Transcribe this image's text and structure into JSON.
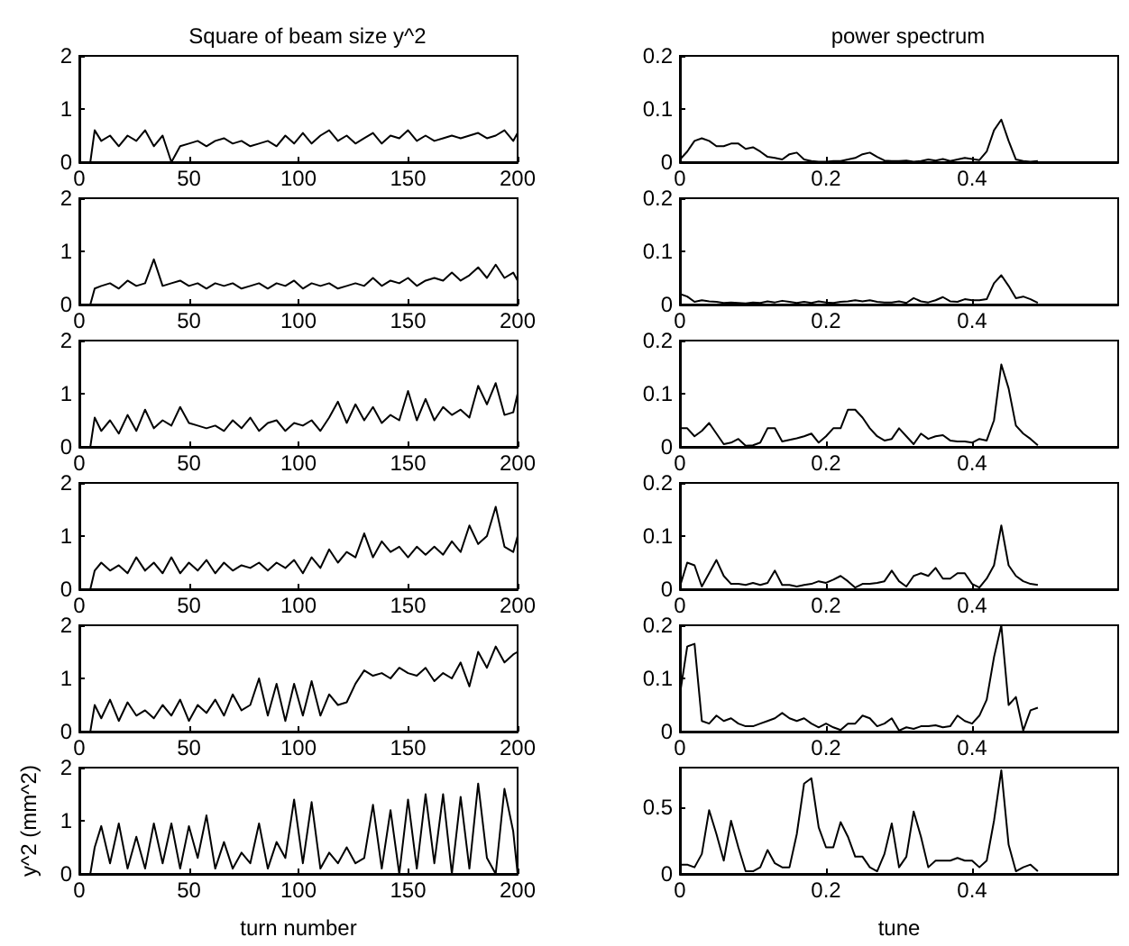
{
  "chart_data": [
    {
      "type": "line",
      "title": "Square of beam size y^2",
      "color": "#000000",
      "xlim": [
        0,
        200
      ],
      "xticks": [
        0,
        50,
        100,
        150,
        200
      ],
      "ylim": [
        0,
        2
      ],
      "yticks": [
        0,
        1,
        2
      ],
      "x": [
        5,
        7,
        10,
        14,
        18,
        22,
        26,
        30,
        34,
        38,
        42,
        46,
        50,
        54,
        58,
        62,
        66,
        70,
        74,
        78,
        82,
        86,
        90,
        94,
        98,
        102,
        106,
        110,
        114,
        118,
        122,
        126,
        130,
        134,
        138,
        142,
        146,
        150,
        154,
        158,
        162,
        166,
        170,
        174,
        178,
        182,
        186,
        190,
        194,
        198,
        200
      ],
      "values": [
        0,
        0.6,
        0.4,
        0.5,
        0.3,
        0.5,
        0.4,
        0.6,
        0.3,
        0.5,
        0,
        0.3,
        0.35,
        0.4,
        0.3,
        0.4,
        0.45,
        0.35,
        0.4,
        0.3,
        0.35,
        0.4,
        0.3,
        0.5,
        0.35,
        0.55,
        0.35,
        0.5,
        0.6,
        0.4,
        0.5,
        0.35,
        0.45,
        0.55,
        0.35,
        0.5,
        0.45,
        0.6,
        0.4,
        0.5,
        0.4,
        0.45,
        0.5,
        0.45,
        0.5,
        0.55,
        0.45,
        0.5,
        0.6,
        0.4,
        0.55
      ]
    },
    {
      "type": "line",
      "title": "power spectrum",
      "color": "#000000",
      "xlim": [
        0,
        0.6
      ],
      "xticks": [
        0,
        0.2,
        0.4
      ],
      "ylim": [
        0,
        0.2
      ],
      "yticks": [
        0,
        0.1,
        0.2
      ],
      "x": [
        0,
        0.01,
        0.02,
        0.03,
        0.04,
        0.05,
        0.06,
        0.07,
        0.08,
        0.09,
        0.1,
        0.11,
        0.12,
        0.13,
        0.14,
        0.15,
        0.16,
        0.17,
        0.18,
        0.19,
        0.2,
        0.21,
        0.22,
        0.23,
        0.24,
        0.25,
        0.26,
        0.27,
        0.28,
        0.29,
        0.3,
        0.31,
        0.32,
        0.33,
        0.34,
        0.35,
        0.36,
        0.37,
        0.38,
        0.39,
        0.4,
        0.41,
        0.42,
        0.43,
        0.44,
        0.45,
        0.46,
        0.47,
        0.48,
        0.49
      ],
      "values": [
        0.005,
        0.02,
        0.04,
        0.045,
        0.04,
        0.03,
        0.03,
        0.035,
        0.035,
        0.025,
        0.028,
        0.02,
        0.01,
        0.008,
        0.005,
        0.015,
        0.018,
        0.005,
        0.002,
        0.001,
        0.001,
        0.002,
        0.002,
        0.005,
        0.008,
        0.015,
        0.018,
        0.01,
        0.003,
        0.002,
        0.002,
        0.003,
        0.001,
        0.002,
        0.005,
        0.003,
        0.006,
        0.002,
        0.005,
        0.008,
        0.006,
        0.004,
        0.02,
        0.06,
        0.08,
        0.04,
        0.005,
        0.002,
        0.001,
        0.002
      ]
    },
    {
      "type": "line",
      "color": "#000000",
      "xlim": [
        0,
        200
      ],
      "xticks": [
        0,
        50,
        100,
        150,
        200
      ],
      "ylim": [
        0,
        2
      ],
      "yticks": [
        0,
        1,
        2
      ],
      "x": [
        5,
        7,
        10,
        14,
        18,
        22,
        26,
        30,
        34,
        38,
        42,
        46,
        50,
        54,
        58,
        62,
        66,
        70,
        74,
        78,
        82,
        86,
        90,
        94,
        98,
        102,
        106,
        110,
        114,
        118,
        122,
        126,
        130,
        134,
        138,
        142,
        146,
        150,
        154,
        158,
        162,
        166,
        170,
        174,
        178,
        182,
        186,
        190,
        194,
        198,
        200
      ],
      "values": [
        0,
        0.3,
        0.35,
        0.4,
        0.3,
        0.45,
        0.35,
        0.4,
        0.85,
        0.35,
        0.4,
        0.45,
        0.35,
        0.4,
        0.3,
        0.4,
        0.35,
        0.4,
        0.3,
        0.35,
        0.4,
        0.3,
        0.4,
        0.35,
        0.45,
        0.3,
        0.4,
        0.35,
        0.4,
        0.3,
        0.35,
        0.4,
        0.35,
        0.5,
        0.35,
        0.45,
        0.4,
        0.5,
        0.35,
        0.45,
        0.5,
        0.45,
        0.6,
        0.45,
        0.55,
        0.7,
        0.5,
        0.75,
        0.5,
        0.6,
        0.45
      ]
    },
    {
      "type": "line",
      "color": "#000000",
      "xlim": [
        0,
        0.6
      ],
      "xticks": [
        0,
        0.2,
        0.4
      ],
      "ylim": [
        0,
        0.2
      ],
      "yticks": [
        0,
        0.1,
        0.2
      ],
      "x": [
        0,
        0.01,
        0.02,
        0.03,
        0.04,
        0.05,
        0.06,
        0.07,
        0.08,
        0.09,
        0.1,
        0.11,
        0.12,
        0.13,
        0.14,
        0.15,
        0.16,
        0.17,
        0.18,
        0.19,
        0.2,
        0.21,
        0.22,
        0.23,
        0.24,
        0.25,
        0.26,
        0.27,
        0.28,
        0.29,
        0.3,
        0.31,
        0.32,
        0.33,
        0.34,
        0.35,
        0.36,
        0.37,
        0.38,
        0.39,
        0.4,
        0.41,
        0.42,
        0.43,
        0.44,
        0.45,
        0.46,
        0.47,
        0.48,
        0.49
      ],
      "values": [
        0.02,
        0.015,
        0.005,
        0.008,
        0.006,
        0.005,
        0.003,
        0.004,
        0.003,
        0.002,
        0.004,
        0.003,
        0.006,
        0.004,
        0.007,
        0.005,
        0.003,
        0.005,
        0.003,
        0.006,
        0.004,
        0.003,
        0.005,
        0.006,
        0.008,
        0.006,
        0.008,
        0.005,
        0.004,
        0.004,
        0.006,
        0.003,
        0.012,
        0.006,
        0.004,
        0.008,
        0.014,
        0.006,
        0.005,
        0.01,
        0.008,
        0.008,
        0.01,
        0.04,
        0.055,
        0.035,
        0.012,
        0.015,
        0.01,
        0.003
      ]
    },
    {
      "type": "line",
      "color": "#000000",
      "xlim": [
        0,
        200
      ],
      "xticks": [
        0,
        50,
        100,
        150,
        200
      ],
      "ylim": [
        0,
        2
      ],
      "yticks": [
        0,
        1,
        2
      ],
      "x": [
        5,
        7,
        10,
        14,
        18,
        22,
        26,
        30,
        34,
        38,
        42,
        46,
        50,
        54,
        58,
        62,
        66,
        70,
        74,
        78,
        82,
        86,
        90,
        94,
        98,
        102,
        106,
        110,
        114,
        118,
        122,
        126,
        130,
        134,
        138,
        142,
        146,
        150,
        154,
        158,
        162,
        166,
        170,
        174,
        178,
        182,
        186,
        190,
        194,
        198,
        200
      ],
      "values": [
        0,
        0.55,
        0.3,
        0.5,
        0.25,
        0.6,
        0.3,
        0.7,
        0.35,
        0.5,
        0.4,
        0.75,
        0.45,
        0.4,
        0.35,
        0.4,
        0.3,
        0.5,
        0.35,
        0.55,
        0.3,
        0.45,
        0.5,
        0.3,
        0.45,
        0.4,
        0.5,
        0.3,
        0.55,
        0.85,
        0.45,
        0.8,
        0.5,
        0.75,
        0.45,
        0.6,
        0.5,
        1.05,
        0.5,
        0.9,
        0.5,
        0.75,
        0.6,
        0.7,
        0.55,
        1.15,
        0.8,
        1.2,
        0.6,
        0.65,
        1.0
      ]
    },
    {
      "type": "line",
      "color": "#000000",
      "xlim": [
        0,
        0.6
      ],
      "xticks": [
        0,
        0.2,
        0.4
      ],
      "ylim": [
        0,
        0.2
      ],
      "yticks": [
        0,
        0.1,
        0.2
      ],
      "x": [
        0,
        0.01,
        0.02,
        0.03,
        0.04,
        0.05,
        0.06,
        0.07,
        0.08,
        0.09,
        0.1,
        0.11,
        0.12,
        0.13,
        0.14,
        0.15,
        0.16,
        0.17,
        0.18,
        0.19,
        0.2,
        0.21,
        0.22,
        0.23,
        0.24,
        0.25,
        0.26,
        0.27,
        0.28,
        0.29,
        0.3,
        0.31,
        0.32,
        0.33,
        0.34,
        0.35,
        0.36,
        0.37,
        0.38,
        0.39,
        0.4,
        0.41,
        0.42,
        0.43,
        0.44,
        0.45,
        0.46,
        0.47,
        0.48,
        0.49
      ],
      "values": [
        0.035,
        0.035,
        0.02,
        0.03,
        0.045,
        0.025,
        0.005,
        0.008,
        0.015,
        0.002,
        0.003,
        0.008,
        0.035,
        0.035,
        0.01,
        0.013,
        0.016,
        0.02,
        0.025,
        0.008,
        0.02,
        0.035,
        0.035,
        0.07,
        0.07,
        0.055,
        0.035,
        0.02,
        0.012,
        0.015,
        0.035,
        0.02,
        0.005,
        0.025,
        0.015,
        0.02,
        0.022,
        0.012,
        0.01,
        0.01,
        0.008,
        0.015,
        0.012,
        0.05,
        0.155,
        0.11,
        0.04,
        0.025,
        0.015,
        0.003
      ]
    },
    {
      "type": "line",
      "color": "#000000",
      "xlim": [
        0,
        200
      ],
      "xticks": [
        0,
        50,
        100,
        150,
        200
      ],
      "ylim": [
        0,
        2
      ],
      "yticks": [
        0,
        1,
        2
      ],
      "x": [
        5,
        7,
        10,
        14,
        18,
        22,
        26,
        30,
        34,
        38,
        42,
        46,
        50,
        54,
        58,
        62,
        66,
        70,
        74,
        78,
        82,
        86,
        90,
        94,
        98,
        102,
        106,
        110,
        114,
        118,
        122,
        126,
        130,
        134,
        138,
        142,
        146,
        150,
        154,
        158,
        162,
        166,
        170,
        174,
        178,
        182,
        186,
        190,
        194,
        198,
        200
      ],
      "values": [
        0,
        0.35,
        0.5,
        0.35,
        0.45,
        0.3,
        0.6,
        0.35,
        0.5,
        0.3,
        0.6,
        0.3,
        0.5,
        0.35,
        0.55,
        0.3,
        0.5,
        0.35,
        0.45,
        0.4,
        0.5,
        0.35,
        0.5,
        0.4,
        0.55,
        0.3,
        0.6,
        0.4,
        0.75,
        0.5,
        0.7,
        0.6,
        1.05,
        0.6,
        0.9,
        0.7,
        0.8,
        0.6,
        0.8,
        0.65,
        0.8,
        0.65,
        0.9,
        0.7,
        1.2,
        0.85,
        1.0,
        1.55,
        0.8,
        0.7,
        1.0
      ]
    },
    {
      "type": "line",
      "color": "#000000",
      "xlim": [
        0,
        0.6
      ],
      "xticks": [
        0,
        0.2,
        0.4
      ],
      "ylim": [
        0,
        0.2
      ],
      "yticks": [
        0,
        0.1,
        0.2
      ],
      "x": [
        0,
        0.01,
        0.02,
        0.03,
        0.04,
        0.05,
        0.06,
        0.07,
        0.08,
        0.09,
        0.1,
        0.11,
        0.12,
        0.13,
        0.14,
        0.15,
        0.16,
        0.17,
        0.18,
        0.19,
        0.2,
        0.21,
        0.22,
        0.23,
        0.24,
        0.25,
        0.26,
        0.27,
        0.28,
        0.29,
        0.3,
        0.31,
        0.32,
        0.33,
        0.34,
        0.35,
        0.36,
        0.37,
        0.38,
        0.39,
        0.4,
        0.41,
        0.42,
        0.43,
        0.44,
        0.45,
        0.46,
        0.47,
        0.48,
        0.49
      ],
      "values": [
        0.005,
        0.05,
        0.045,
        0.005,
        0.03,
        0.055,
        0.025,
        0.01,
        0.01,
        0.008,
        0.012,
        0.008,
        0.012,
        0.035,
        0.008,
        0.008,
        0.005,
        0.008,
        0.01,
        0.015,
        0.012,
        0.018,
        0.025,
        0.015,
        0.003,
        0.01,
        0.01,
        0.012,
        0.015,
        0.035,
        0.015,
        0.005,
        0.025,
        0.03,
        0.025,
        0.04,
        0.02,
        0.02,
        0.03,
        0.03,
        0.01,
        0.003,
        0.02,
        0.045,
        0.12,
        0.045,
        0.025,
        0.015,
        0.01,
        0.008
      ]
    },
    {
      "type": "line",
      "color": "#000000",
      "xlim": [
        0,
        200
      ],
      "xticks": [
        0,
        50,
        100,
        150,
        200
      ],
      "ylim": [
        0,
        2
      ],
      "yticks": [
        0,
        1,
        2
      ],
      "x": [
        5,
        7,
        10,
        14,
        18,
        22,
        26,
        30,
        34,
        38,
        42,
        46,
        50,
        54,
        58,
        62,
        66,
        70,
        74,
        78,
        82,
        86,
        90,
        94,
        98,
        102,
        106,
        110,
        114,
        118,
        122,
        126,
        130,
        134,
        138,
        142,
        146,
        150,
        154,
        158,
        162,
        166,
        170,
        174,
        178,
        182,
        186,
        190,
        194,
        198,
        200
      ],
      "values": [
        0,
        0.5,
        0.25,
        0.6,
        0.2,
        0.55,
        0.3,
        0.4,
        0.25,
        0.5,
        0.3,
        0.6,
        0.2,
        0.5,
        0.35,
        0.6,
        0.3,
        0.7,
        0.4,
        0.5,
        1.0,
        0.3,
        0.9,
        0.2,
        0.9,
        0.3,
        0.95,
        0.3,
        0.7,
        0.5,
        0.55,
        0.9,
        1.15,
        1.05,
        1.1,
        1.0,
        1.2,
        1.1,
        1.05,
        1.2,
        0.95,
        1.1,
        1.0,
        1.3,
        0.85,
        1.5,
        1.2,
        1.6,
        1.3,
        1.45,
        1.5
      ]
    },
    {
      "type": "line",
      "color": "#000000",
      "xlim": [
        0,
        0.6
      ],
      "xticks": [
        0,
        0.2,
        0.4
      ],
      "ylim": [
        0,
        0.2
      ],
      "yticks": [
        0,
        0.1,
        0.2
      ],
      "x": [
        0,
        0.01,
        0.02,
        0.03,
        0.04,
        0.05,
        0.06,
        0.07,
        0.08,
        0.09,
        0.1,
        0.11,
        0.12,
        0.13,
        0.14,
        0.15,
        0.16,
        0.17,
        0.18,
        0.19,
        0.2,
        0.21,
        0.22,
        0.23,
        0.24,
        0.25,
        0.26,
        0.27,
        0.28,
        0.29,
        0.3,
        0.31,
        0.32,
        0.33,
        0.34,
        0.35,
        0.36,
        0.37,
        0.38,
        0.39,
        0.4,
        0.41,
        0.42,
        0.43,
        0.44,
        0.45,
        0.46,
        0.47,
        0.48,
        0.49
      ],
      "values": [
        0.07,
        0.16,
        0.165,
        0.02,
        0.015,
        0.03,
        0.02,
        0.025,
        0.015,
        0.01,
        0.01,
        0.015,
        0.02,
        0.025,
        0.035,
        0.025,
        0.02,
        0.025,
        0.015,
        0.008,
        0.015,
        0.008,
        0.003,
        0.015,
        0.015,
        0.03,
        0.025,
        0.01,
        0.015,
        0.025,
        0.002,
        0.008,
        0.005,
        0.01,
        0.01,
        0.012,
        0.008,
        0.01,
        0.03,
        0.02,
        0.015,
        0.03,
        0.06,
        0.14,
        0.2,
        0.05,
        0.065,
        0.002,
        0.04,
        0.045
      ]
    },
    {
      "type": "line",
      "xlabel": "turn number",
      "ylabel": "y^2 (mm^2)",
      "color": "#000000",
      "xlim": [
        0,
        200
      ],
      "xticks": [
        0,
        50,
        100,
        150,
        200
      ],
      "ylim": [
        0,
        2
      ],
      "yticks": [
        0,
        1,
        2
      ],
      "x": [
        5,
        7,
        10,
        14,
        18,
        22,
        26,
        30,
        34,
        38,
        42,
        46,
        50,
        54,
        58,
        62,
        66,
        70,
        74,
        78,
        82,
        86,
        90,
        94,
        98,
        102,
        106,
        110,
        114,
        118,
        122,
        126,
        130,
        134,
        138,
        142,
        146,
        150,
        154,
        158,
        162,
        166,
        170,
        174,
        178,
        182,
        186,
        190,
        194,
        198,
        200
      ],
      "values": [
        0,
        0.5,
        0.9,
        0.2,
        0.95,
        0.1,
        0.7,
        0.1,
        0.95,
        0.2,
        0.95,
        0.1,
        0.9,
        0.3,
        1.1,
        0.1,
        0.6,
        0.1,
        0.4,
        0.2,
        0.95,
        0.1,
        0.6,
        0.3,
        1.4,
        0.2,
        1.35,
        0.1,
        0.4,
        0.2,
        0.5,
        0.2,
        0.3,
        1.3,
        0.1,
        1.2,
        0,
        1.4,
        0.1,
        1.5,
        0.2,
        1.5,
        0,
        1.45,
        0.1,
        1.7,
        0.3,
        0,
        1.6,
        0.8,
        0
      ]
    },
    {
      "type": "line",
      "xlabel": "tune",
      "color": "#000000",
      "xlim": [
        0,
        0.6
      ],
      "xticks": [
        0,
        0.2,
        0.4
      ],
      "ylim": [
        0,
        0.8
      ],
      "yticks": [
        0,
        0.5
      ],
      "x": [
        0,
        0.01,
        0.02,
        0.03,
        0.04,
        0.05,
        0.06,
        0.07,
        0.08,
        0.09,
        0.1,
        0.11,
        0.12,
        0.13,
        0.14,
        0.15,
        0.16,
        0.17,
        0.18,
        0.19,
        0.2,
        0.21,
        0.22,
        0.23,
        0.24,
        0.25,
        0.26,
        0.27,
        0.28,
        0.29,
        0.3,
        0.31,
        0.32,
        0.33,
        0.34,
        0.35,
        0.36,
        0.37,
        0.38,
        0.39,
        0.4,
        0.41,
        0.42,
        0.43,
        0.44,
        0.45,
        0.46,
        0.47,
        0.48,
        0.49
      ],
      "values": [
        0.07,
        0.07,
        0.05,
        0.15,
        0.48,
        0.3,
        0.1,
        0.4,
        0.2,
        0.02,
        0.02,
        0.05,
        0.18,
        0.08,
        0.05,
        0.05,
        0.3,
        0.68,
        0.72,
        0.35,
        0.2,
        0.2,
        0.39,
        0.28,
        0.13,
        0.13,
        0.05,
        0.02,
        0.15,
        0.38,
        0.05,
        0.13,
        0.47,
        0.28,
        0.05,
        0.1,
        0.1,
        0.1,
        0.12,
        0.1,
        0.1,
        0.05,
        0.1,
        0.4,
        0.78,
        0.22,
        0.02,
        0.05,
        0.07,
        0.02
      ]
    }
  ]
}
